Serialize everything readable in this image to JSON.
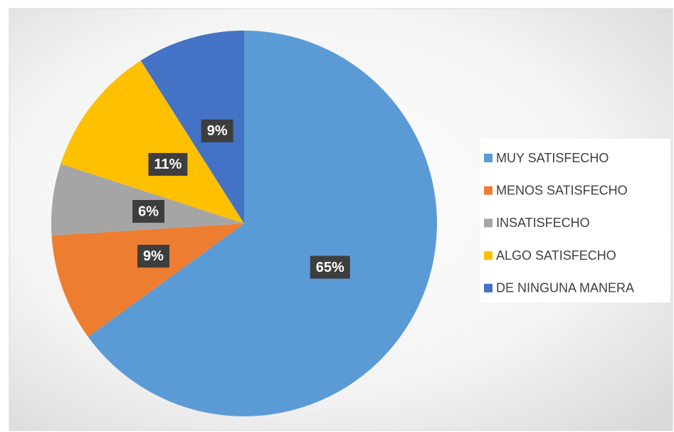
{
  "chart_data": {
    "type": "pie",
    "categories": [
      "MUY SATISFECHO",
      "MENOS SATISFECHO",
      "INSATISFECHO",
      "ALGO SATISFECHO",
      "DE NINGUNA MANERA"
    ],
    "values": [
      65,
      9,
      6,
      11,
      9
    ],
    "value_labels": [
      "65%",
      "9%",
      "6%",
      "11%",
      "9%"
    ],
    "colors": [
      "#5b9bd5",
      "#ed7d31",
      "#a5a5a5",
      "#ffc000",
      "#4472c4"
    ],
    "legend": "right"
  }
}
